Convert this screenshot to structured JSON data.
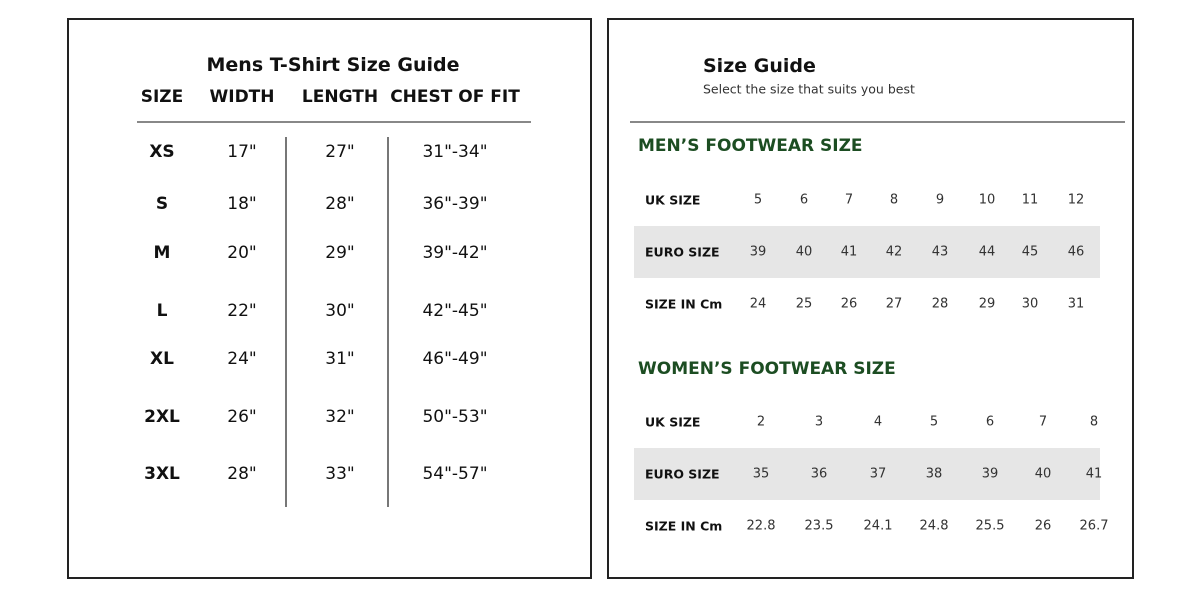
{
  "tshirt": {
    "title": "Mens T-Shirt Size Guide",
    "headers": [
      "SIZE",
      "WIDTH",
      "LENGTH",
      "CHEST OF FIT"
    ],
    "rows": [
      [
        "XS",
        "17\"",
        "27\"",
        "31\"-34\""
      ],
      [
        "S",
        "18\"",
        "28\"",
        "36\"-39\""
      ],
      [
        "M",
        "20\"",
        "29\"",
        "39\"-42\""
      ],
      [
        "L",
        "22\"",
        "30\"",
        "42\"-45\""
      ],
      [
        "XL",
        "24\"",
        "31\"",
        "46\"-49\""
      ],
      [
        "2XL",
        "26\"",
        "32\"",
        "50\"-53\""
      ],
      [
        "3XL",
        "28\"",
        "33\"",
        "54\"-57\""
      ]
    ]
  },
  "footwear": {
    "title": "Size Guide",
    "subtitle": "Select the size that suits you best",
    "heading_color": "#1c4d22",
    "band_color": "#e6e6e6",
    "mens": {
      "heading": "MEN’S FOOTWEAR SIZE",
      "rows": [
        {
          "label": "UK SIZE",
          "values": [
            "5",
            "6",
            "7",
            "8",
            "9",
            "10",
            "11",
            "12"
          ]
        },
        {
          "label": "EURO SIZE",
          "values": [
            "39",
            "40",
            "41",
            "42",
            "43",
            "44",
            "45",
            "46"
          ]
        },
        {
          "label": "SIZE IN Cm",
          "values": [
            "24",
            "25",
            "26",
            "27",
            "28",
            "29",
            "30",
            "31"
          ]
        }
      ]
    },
    "womens": {
      "heading": "WOMEN’S FOOTWEAR SIZE",
      "rows": [
        {
          "label": "UK SIZE",
          "values": [
            "2",
            "3",
            "4",
            "5",
            "6",
            "7",
            "8"
          ]
        },
        {
          "label": "EURO SIZE",
          "values": [
            "35",
            "36",
            "37",
            "38",
            "39",
            "40",
            "41"
          ]
        },
        {
          "label": "SIZE IN Cm",
          "values": [
            "22.8",
            "23.5",
            "24.1",
            "24.8",
            "25.5",
            "26",
            "26.7"
          ]
        }
      ]
    }
  }
}
